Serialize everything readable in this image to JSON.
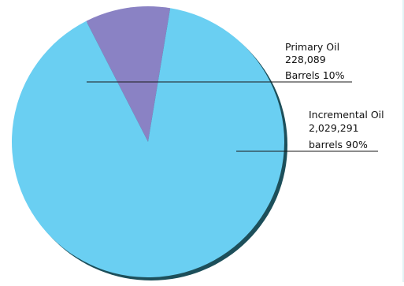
{
  "chart_data": {
    "type": "pie",
    "title": "",
    "slices": [
      {
        "name": "Primary Oil",
        "value": 228089,
        "value_label": "228,089",
        "unit": "Barrels",
        "percent_label": "10%",
        "color": "#8a82c4"
      },
      {
        "name": "Incremental Oil",
        "value": 2029291,
        "value_label": "2,029,291",
        "unit": "barrels",
        "percent_label": "90%",
        "color": "#6acff2"
      }
    ],
    "legend": "none",
    "shadow_color": "#1d4f5a"
  }
}
